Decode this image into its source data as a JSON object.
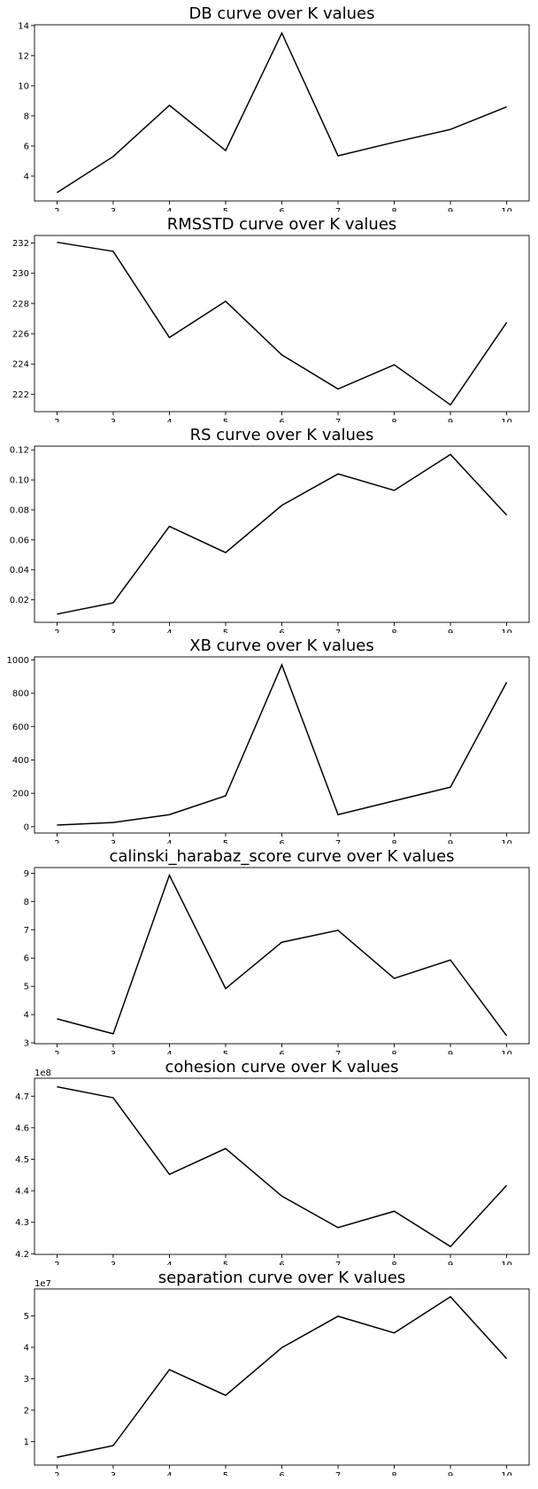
{
  "chart_data": [
    {
      "type": "line",
      "title": "DB curve over K values",
      "x": [
        2,
        3,
        4,
        5,
        6,
        7,
        8,
        9,
        10
      ],
      "series": [
        {
          "values": [
            2.9,
            5.3,
            8.7,
            5.7,
            13.5,
            5.35,
            6.25,
            7.1,
            8.6
          ]
        }
      ],
      "xlim": [
        1.6,
        10.4
      ],
      "ylim": [
        2.35,
        14.05
      ],
      "yticks": [
        4,
        6,
        8,
        10,
        12,
        14
      ],
      "ytick_labels": [
        "4",
        "6",
        "8",
        "10",
        "12",
        "14"
      ],
      "offset_label": "",
      "color": "#000000"
    },
    {
      "type": "line",
      "title": "RMSSTD curve over K values",
      "x": [
        2,
        3,
        4,
        5,
        6,
        7,
        8,
        9,
        10
      ],
      "series": [
        {
          "values": [
            232.05,
            231.45,
            225.75,
            228.15,
            224.6,
            222.35,
            223.95,
            221.3,
            226.75
          ]
        }
      ],
      "xlim": [
        1.6,
        10.4
      ],
      "ylim": [
        220.85,
        232.5
      ],
      "yticks": [
        222,
        224,
        226,
        228,
        230,
        232
      ],
      "ytick_labels": [
        "222",
        "224",
        "226",
        "228",
        "230",
        "232"
      ],
      "offset_label": "",
      "color": "#000000"
    },
    {
      "type": "line",
      "title": "RS curve over K values",
      "x": [
        2,
        3,
        4,
        5,
        6,
        7,
        8,
        9,
        10
      ],
      "series": [
        {
          "values": [
            0.0105,
            0.018,
            0.069,
            0.0515,
            0.083,
            0.104,
            0.093,
            0.117,
            0.0765
          ]
        }
      ],
      "xlim": [
        1.6,
        10.4
      ],
      "ylim": [
        0.005,
        0.1225
      ],
      "yticks": [
        0.02,
        0.04,
        0.06,
        0.08,
        0.1,
        0.12
      ],
      "ytick_labels": [
        "0.02",
        "0.04",
        "0.06",
        "0.08",
        "0.10",
        "0.12"
      ],
      "offset_label": "",
      "color": "#000000"
    },
    {
      "type": "line",
      "title": "XB curve over K values",
      "x": [
        2,
        3,
        4,
        5,
        6,
        7,
        8,
        9,
        10
      ],
      "series": [
        {
          "values": [
            10,
            25,
            72,
            185,
            970,
            72,
            155,
            237,
            866
          ]
        }
      ],
      "xlim": [
        1.6,
        10.4
      ],
      "ylim": [
        -38,
        1018
      ],
      "yticks": [
        0,
        200,
        400,
        600,
        800,
        1000
      ],
      "ytick_labels": [
        "0",
        "200",
        "400",
        "600",
        "800",
        "1000"
      ],
      "offset_label": "",
      "color": "#000000"
    },
    {
      "type": "line",
      "title": "calinski_harabaz_score curve over K values",
      "x": [
        2,
        3,
        4,
        5,
        6,
        7,
        8,
        9,
        10
      ],
      "series": [
        {
          "values": [
            3.85,
            3.32,
            8.93,
            4.92,
            6.56,
            6.98,
            5.28,
            5.93,
            3.25
          ]
        }
      ],
      "xlim": [
        1.6,
        10.4
      ],
      "ylim": [
        2.97,
        9.2
      ],
      "yticks": [
        3,
        4,
        5,
        6,
        7,
        8,
        9
      ],
      "ytick_labels": [
        "3",
        "4",
        "5",
        "6",
        "7",
        "8",
        "9"
      ],
      "offset_label": "",
      "color": "#000000"
    },
    {
      "type": "line",
      "title": "cohesion curve over K values",
      "x": [
        2,
        3,
        4,
        5,
        6,
        7,
        8,
        9,
        10
      ],
      "series": [
        {
          "values": [
            473000000,
            469500000,
            445200000,
            453400000,
            438300000,
            428300000,
            433500000,
            422300000,
            441700000
          ]
        }
      ],
      "xlim": [
        1.6,
        10.4
      ],
      "ylim": [
        419800000,
        475700000
      ],
      "yticks": [
        420000000,
        430000000,
        440000000,
        450000000,
        460000000,
        470000000
      ],
      "ytick_labels": [
        "4.2",
        "4.3",
        "4.4",
        "4.5",
        "4.6",
        "4.7"
      ],
      "offset_label": "1e8",
      "color": "#000000"
    },
    {
      "type": "line",
      "title": "separation curve over K values",
      "x": [
        2,
        3,
        4,
        5,
        6,
        7,
        8,
        9,
        10
      ],
      "series": [
        {
          "values": [
            5000000,
            8700000,
            32900000,
            24700000,
            39900000,
            49900000,
            44600000,
            56100000,
            36400000
          ]
        }
      ],
      "xlim": [
        1.6,
        10.4
      ],
      "ylim": [
        2500000,
        58600000
      ],
      "yticks": [
        10000000,
        20000000,
        30000000,
        40000000,
        50000000
      ],
      "ytick_labels": [
        "1",
        "2",
        "3",
        "4",
        "5"
      ],
      "offset_label": "1e7",
      "color": "#000000"
    }
  ]
}
